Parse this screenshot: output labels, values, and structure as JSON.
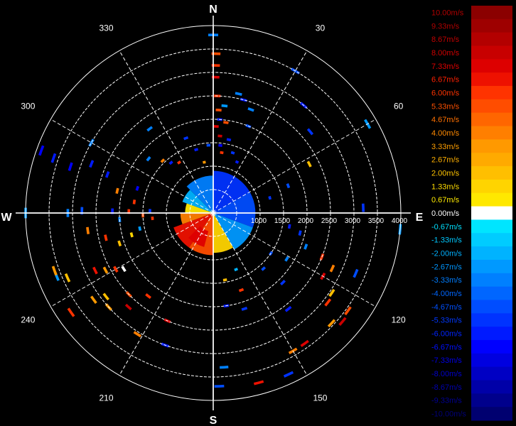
{
  "chart_data": {
    "type": "polar-heatmap",
    "title": "",
    "compass": {
      "north": "N",
      "east": "E",
      "south": "S",
      "west": "W"
    },
    "azimuth_ticks": [
      "30",
      "60",
      "120",
      "150",
      "210",
      "240",
      "300",
      "330"
    ],
    "azimuth_tick_degrees": [
      30,
      60,
      120,
      150,
      210,
      240,
      300,
      330
    ],
    "range_ticks": [
      "1000",
      "1500",
      "2000",
      "2500",
      "3000",
      "3500",
      "4000"
    ],
    "range_tick_values": [
      1000,
      1500,
      2000,
      2500,
      3000,
      3500,
      4000
    ],
    "range_max": 4000,
    "grid": true,
    "colorbar": {
      "labels": [
        "10.00m/s",
        "9.33m/s",
        "8.67m/s",
        "8.00m/s",
        "7.33m/s",
        "6.67m/s",
        "6.00m/s",
        "5.33m/s",
        "4.67m/s",
        "4.00m/s",
        "3.33m/s",
        "2.67m/s",
        "2.00m/s",
        "1.33m/s",
        "0.67m/s",
        "0.00m/s",
        "-0.67m/s",
        "-1.33m/s",
        "-2.00m/s",
        "-2.67m/s",
        "-3.33m/s",
        "-4.00m/s",
        "-4.67m/s",
        "-5.33m/s",
        "-6.00m/s",
        "-6.67m/s",
        "-7.33m/s",
        "-8.00m/s",
        "-8.67m/s",
        "-9.33m/s",
        "-10.00m/s"
      ],
      "colors": [
        "#8b0000",
        "#9e0000",
        "#b30000",
        "#c80000",
        "#dd0000",
        "#ee1100",
        "#ff3300",
        "#ff4d00",
        "#ff6600",
        "#ff7f00",
        "#ff9900",
        "#ffaa00",
        "#ffbf00",
        "#ffd400",
        "#ffe800",
        "#ffffff",
        "#00e5ff",
        "#00ccff",
        "#00b3ff",
        "#0099ff",
        "#0080ff",
        "#0066ff",
        "#004dff",
        "#0033ff",
        "#001aff",
        "#0000ff",
        "#0000e0",
        "#0000c4",
        "#0000a8",
        "#00008c",
        "#000070"
      ],
      "label_colors": [
        "#b00000",
        "#b00000",
        "#c00000",
        "#d00000",
        "#e00000",
        "#ff2000",
        "#ff3300",
        "#ff5000",
        "#ff7000",
        "#ff8a00",
        "#ff9f00",
        "#ffb000",
        "#ffc400",
        "#ffdc00",
        "#ffeb00",
        "#ffffff",
        "#00e0ff",
        "#00c8ff",
        "#00b0ff",
        "#0096ff",
        "#007dff",
        "#0066ff",
        "#0050ff",
        "#0038ff",
        "#0024ff",
        "#0010ff",
        "#0000e8",
        "#0000cc",
        "#0000b0",
        "#000094",
        "#000078"
      ]
    },
    "velocity_sectors": [
      {
        "az_from": 315,
        "az_to": 360,
        "r_from": 0,
        "r_to": 800,
        "v": -3.3
      },
      {
        "az_from": 0,
        "az_to": 60,
        "r_from": 0,
        "r_to": 900,
        "v": -5.3
      },
      {
        "az_from": 60,
        "az_to": 110,
        "r_from": 0,
        "r_to": 900,
        "v": -4.7
      },
      {
        "az_from": 290,
        "az_to": 315,
        "r_from": 0,
        "r_to": 700,
        "v": -2.0
      },
      {
        "az_from": 270,
        "az_to": 290,
        "r_from": 0,
        "r_to": 600,
        "v": 0.7
      },
      {
        "az_from": 110,
        "az_to": 150,
        "r_from": 0,
        "r_to": 900,
        "v": -2.7
      },
      {
        "az_from": 150,
        "az_to": 180,
        "r_from": 0,
        "r_to": 850,
        "v": 1.3
      },
      {
        "az_from": 180,
        "az_to": 215,
        "r_from": 0,
        "r_to": 900,
        "v": 5.3
      },
      {
        "az_from": 215,
        "az_to": 250,
        "r_from": 0,
        "r_to": 900,
        "v": 6.7
      },
      {
        "az_from": 250,
        "az_to": 270,
        "r_from": 0,
        "r_to": 700,
        "v": 4.0
      },
      {
        "az_from": 195,
        "az_to": 225,
        "r_from": 400,
        "r_to": 750,
        "v": 7.3
      }
    ],
    "velocity_gates": [
      {
        "az": 0,
        "r": 3800,
        "v": -3.3
      },
      {
        "az": 1,
        "r": 3400,
        "v": 5.3
      },
      {
        "az": 1,
        "r": 3150,
        "v": 6.0
      },
      {
        "az": 1,
        "r": 2900,
        "v": 7.3
      },
      {
        "az": 2,
        "r": 2500,
        "v": 6.0
      },
      {
        "az": 3,
        "r": 2200,
        "v": 5.3
      },
      {
        "az": 4,
        "r": 2000,
        "v": -6.0
      },
      {
        "az": 2,
        "r": 1850,
        "v": 7.3
      },
      {
        "az": 5,
        "r": 1650,
        "v": 8.0
      },
      {
        "az": 6,
        "r": 1450,
        "v": -6.7
      },
      {
        "az": 8,
        "r": 1300,
        "v": 6.0
      },
      {
        "az": 6,
        "r": 2300,
        "v": -2.7
      },
      {
        "az": 8,
        "r": 1950,
        "v": 5.3
      },
      {
        "az": 12,
        "r": 2600,
        "v": -3.3
      },
      {
        "az": 15,
        "r": 2500,
        "v": -6.0
      },
      {
        "az": 20,
        "r": 2350,
        "v": -3.3
      },
      {
        "az": 22,
        "r": 2000,
        "v": -4.7
      },
      {
        "az": 12,
        "r": 1600,
        "v": -6.0
      },
      {
        "az": 18,
        "r": 1350,
        "v": -5.3
      },
      {
        "az": 25,
        "r": 1200,
        "v": -6.0
      },
      {
        "az": 30,
        "r": 3500,
        "v": -4.7
      },
      {
        "az": 40,
        "r": 3000,
        "v": -6.0
      },
      {
        "az": 60,
        "r": 3800,
        "v": -2.7
      },
      {
        "az": 50,
        "r": 2700,
        "v": -5.3
      },
      {
        "az": 63,
        "r": 2300,
        "v": 2.0
      },
      {
        "az": 70,
        "r": 1700,
        "v": -4.7
      },
      {
        "az": 75,
        "r": 1250,
        "v": -5.3
      },
      {
        "az": 88,
        "r": 3200,
        "v": -5.3
      },
      {
        "az": 95,
        "r": 4000,
        "v": -2.7
      },
      {
        "az": 100,
        "r": 1650,
        "v": -6.0
      },
      {
        "az": 103,
        "r": 1900,
        "v": -5.3
      },
      {
        "az": 110,
        "r": 2100,
        "v": -3.3
      },
      {
        "az": 112,
        "r": 2500,
        "v": 6.0
      },
      {
        "az": 113,
        "r": 3300,
        "v": -4.7
      },
      {
        "az": 115,
        "r": 2800,
        "v": 4.0
      },
      {
        "az": 120,
        "r": 2700,
        "v": 7.3
      },
      {
        "az": 124,
        "r": 3050,
        "v": 2.0
      },
      {
        "az": 128,
        "r": 3100,
        "v": 6.0
      },
      {
        "az": 126,
        "r": 3550,
        "v": 5.3
      },
      {
        "az": 130,
        "r": 3600,
        "v": 8.0
      },
      {
        "az": 133,
        "r": 3450,
        "v": 3.3
      },
      {
        "az": 122,
        "r": 1850,
        "v": -3.3
      },
      {
        "az": 125,
        "r": 1500,
        "v": -4.7
      },
      {
        "az": 135,
        "r": 2100,
        "v": -5.3
      },
      {
        "az": 138,
        "r": 1600,
        "v": -4.7
      },
      {
        "az": 142,
        "r": 2600,
        "v": -6.0
      },
      {
        "az": 145,
        "r": 3400,
        "v": 7.3
      },
      {
        "az": 150,
        "r": 3400,
        "v": 4.0
      },
      {
        "az": 155,
        "r": 3800,
        "v": -5.3
      },
      {
        "az": 158,
        "r": 1300,
        "v": -2.0
      },
      {
        "az": 160,
        "r": 1750,
        "v": 6.0
      },
      {
        "az": 162,
        "r": 2150,
        "v": -5.3
      },
      {
        "az": 165,
        "r": 3750,
        "v": 6.7
      },
      {
        "az": 170,
        "r": 1450,
        "v": 2.0
      },
      {
        "az": 172,
        "r": 2000,
        "v": -6.0
      },
      {
        "az": 176,
        "r": 3300,
        "v": -3.3
      },
      {
        "az": 178,
        "r": 3700,
        "v": -4.7
      },
      {
        "az": 200,
        "r": 3000,
        "v": -6.0
      },
      {
        "az": 203,
        "r": 2500,
        "v": 7.3
      },
      {
        "az": 212,
        "r": 3050,
        "v": 4.0
      },
      {
        "az": 218,
        "r": 2250,
        "v": 6.0
      },
      {
        "az": 222,
        "r": 2700,
        "v": 8.0
      },
      {
        "az": 226,
        "r": 2500,
        "v": 5.3
      },
      {
        "az": 228,
        "r": 3000,
        "v": 3.3
      },
      {
        "az": 232,
        "r": 2900,
        "v": 2.0
      },
      {
        "az": 234,
        "r": 3150,
        "v": 3.3
      },
      {
        "az": 235,
        "r": 3700,
        "v": 6.0
      },
      {
        "az": 238,
        "r": 2250,
        "v": 0.0
      },
      {
        "az": 240,
        "r": 2400,
        "v": 6.0
      },
      {
        "az": 242,
        "r": 2600,
        "v": 3.3
      },
      {
        "az": 244,
        "r": 2800,
        "v": 6.7
      },
      {
        "az": 246,
        "r": 3400,
        "v": 2.0
      },
      {
        "az": 248,
        "r": 3600,
        "v": -2.7
      },
      {
        "az": 250,
        "r": 3600,
        "v": 3.3
      },
      {
        "az": 252,
        "r": 2100,
        "v": 2.0
      },
      {
        "az": 255,
        "r": 1800,
        "v": 1.3
      },
      {
        "az": 257,
        "r": 2350,
        "v": 6.0
      },
      {
        "az": 258,
        "r": 1600,
        "v": -2.7
      },
      {
        "az": 262,
        "r": 2700,
        "v": 4.0
      },
      {
        "az": 265,
        "r": 1300,
        "v": 6.0
      },
      {
        "az": 266,
        "r": 2000,
        "v": -3.3
      },
      {
        "az": 268,
        "r": 1500,
        "v": 5.3
      },
      {
        "az": 270,
        "r": 4000,
        "v": -2.7
      },
      {
        "az": 270,
        "r": 3100,
        "v": -3.3
      },
      {
        "az": 271,
        "r": 2800,
        "v": -4.7
      },
      {
        "az": 271,
        "r": 2150,
        "v": -6.0
      },
      {
        "az": 271,
        "r": 1800,
        "v": 6.0
      },
      {
        "az": 272,
        "r": 1350,
        "v": -5.3
      },
      {
        "az": 278,
        "r": 1700,
        "v": 6.0
      },
      {
        "az": 283,
        "r": 2100,
        "v": 4.0
      },
      {
        "az": 288,
        "r": 1700,
        "v": -6.7
      },
      {
        "az": 290,
        "r": 2400,
        "v": -6.0
      },
      {
        "az": 292,
        "r": 2800,
        "v": -6.0
      },
      {
        "az": 288,
        "r": 3200,
        "v": -6.7
      },
      {
        "az": 289,
        "r": 3600,
        "v": -6.0
      },
      {
        "az": 290,
        "r": 3900,
        "v": -6.7
      },
      {
        "az": 300,
        "r": 3000,
        "v": -3.3
      },
      {
        "az": 310,
        "r": 1800,
        "v": -3.3
      },
      {
        "az": 316,
        "r": 1550,
        "v": 4.0
      },
      {
        "az": 320,
        "r": 1400,
        "v": -6.0
      },
      {
        "az": 323,
        "r": 2250,
        "v": -3.3
      },
      {
        "az": 326,
        "r": 1300,
        "v": 6.0
      },
      {
        "az": 340,
        "r": 1700,
        "v": -5.3
      },
      {
        "az": 345,
        "r": 1400,
        "v": -6.0
      },
      {
        "az": 350,
        "r": 1100,
        "v": 3.3
      },
      {
        "az": 356,
        "r": 1450,
        "v": -4.7
      }
    ]
  }
}
